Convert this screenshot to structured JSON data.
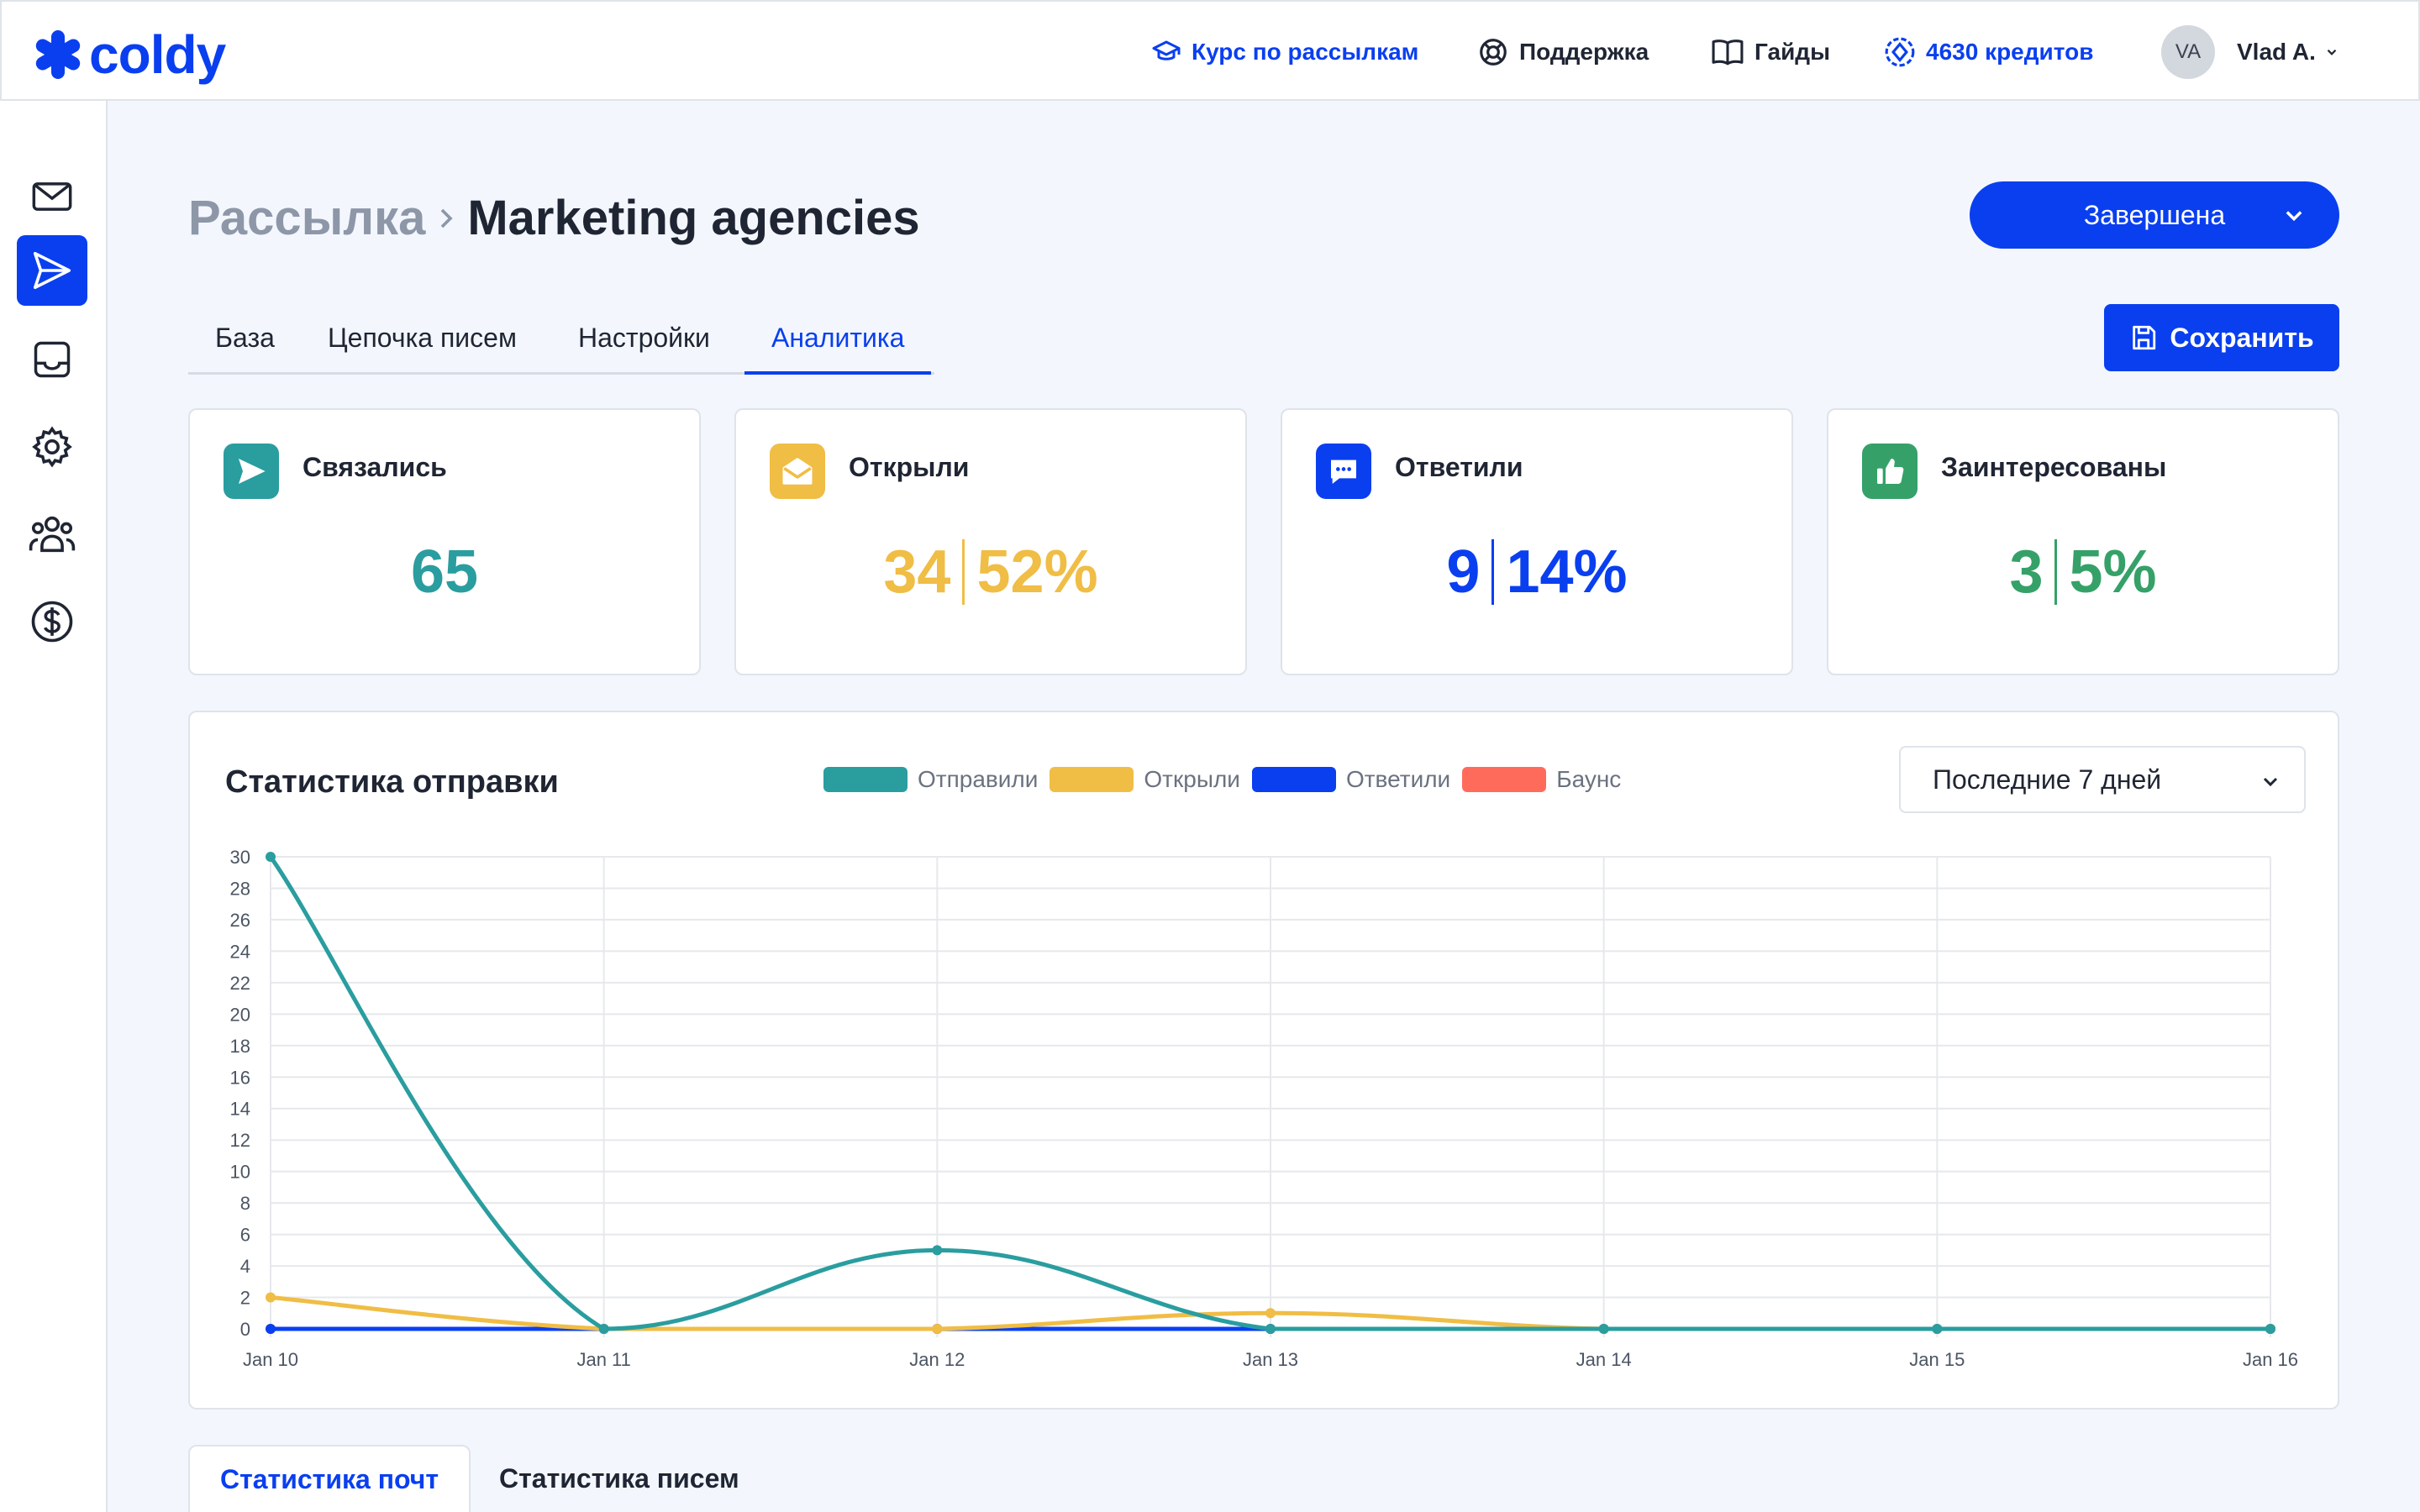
{
  "brand": {
    "name": "coldy",
    "color": "#0a3ff0"
  },
  "topbar": {
    "course": "Курс по рассылкам",
    "support": "Поддержка",
    "guides": "Гайды",
    "credits": "4630 кредитов",
    "avatar_initials": "VA",
    "username": "Vlad A."
  },
  "sidebar": {
    "items": [
      {
        "icon": "mail-icon",
        "active": false
      },
      {
        "icon": "send-icon",
        "active": true
      },
      {
        "icon": "inbox-icon",
        "active": false
      },
      {
        "icon": "gear-icon",
        "active": false
      },
      {
        "icon": "users-icon",
        "active": false
      },
      {
        "icon": "dollar-icon",
        "active": false
      }
    ]
  },
  "header": {
    "breadcrumb_root": "Рассылка",
    "title": "Marketing agencies",
    "status": "Завершена",
    "save": "Сохранить"
  },
  "tabs": [
    "База",
    "Цепочка писем",
    "Настройки",
    "Аналитика"
  ],
  "active_tab": "Аналитика",
  "stats": [
    {
      "label": "Связались",
      "value": "65",
      "percent": "",
      "color": "#2a9d9f",
      "icon": "send-icon"
    },
    {
      "label": "Открыли",
      "value": "34",
      "percent": "52%",
      "color": "#f0bd45",
      "icon": "envelope-open-icon"
    },
    {
      "label": "Ответили",
      "value": "9",
      "percent": "14%",
      "color": "#0a3ff0",
      "icon": "chat-icon"
    },
    {
      "label": "Заинтересованы",
      "value": "3",
      "percent": "5%",
      "color": "#35a169",
      "icon": "thumbs-up-icon"
    }
  ],
  "chart_panel": {
    "title": "Статистика отправки",
    "range": "Последние 7 дней"
  },
  "chart_data": {
    "type": "line",
    "x": [
      "Jan 10",
      "Jan 11",
      "Jan 12",
      "Jan 13",
      "Jan 14",
      "Jan 15",
      "Jan 16"
    ],
    "ylim": [
      0,
      30
    ],
    "yticks": [
      0,
      2,
      4,
      6,
      8,
      10,
      12,
      14,
      16,
      18,
      20,
      22,
      24,
      26,
      28,
      30
    ],
    "grid": true,
    "legend_position": "top",
    "series": [
      {
        "name": "Отправили",
        "color": "#2a9d9f",
        "values": [
          30,
          0,
          5,
          0,
          0,
          0,
          0
        ]
      },
      {
        "name": "Открыли",
        "color": "#f0bd45",
        "values": [
          2,
          0,
          0,
          1,
          0,
          0,
          0
        ]
      },
      {
        "name": "Ответили",
        "color": "#0a3ff0",
        "values": [
          0,
          0,
          0,
          0,
          0,
          0,
          0
        ]
      },
      {
        "name": "Баунс",
        "color": "#ff6b5b",
        "values": [
          0,
          0,
          0,
          0,
          0,
          0,
          0
        ]
      }
    ]
  },
  "bottom_tabs": [
    "Статистика почт",
    "Статистика писем"
  ]
}
